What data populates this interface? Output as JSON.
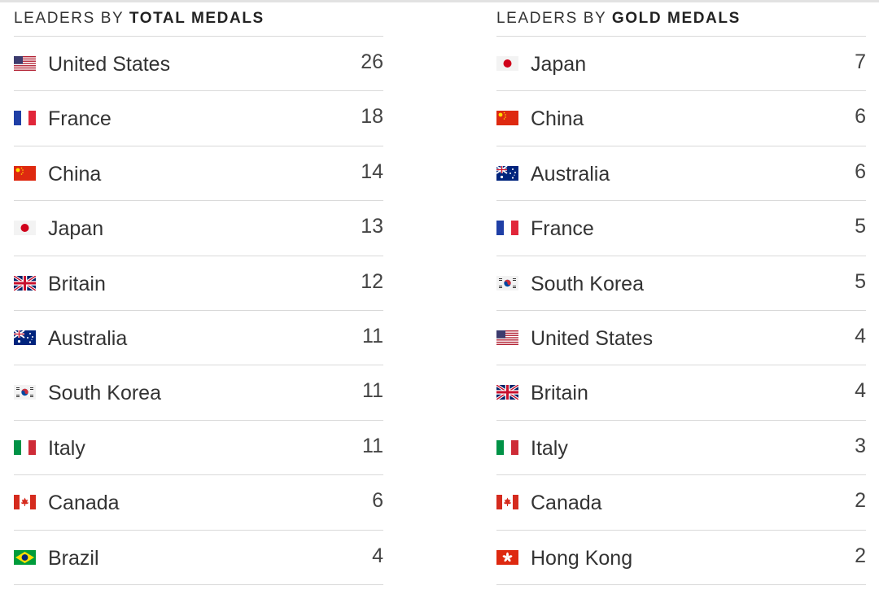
{
  "total": {
    "heading_prefix": "LEADERS BY",
    "heading_bold": "TOTAL MEDALS",
    "rows": [
      {
        "country": "United States",
        "flag": "us-flag-icon",
        "count": "26"
      },
      {
        "country": "France",
        "flag": "france-flag-icon",
        "count": "18"
      },
      {
        "country": "China",
        "flag": "china-flag-icon",
        "count": "14"
      },
      {
        "country": "Japan",
        "flag": "japan-flag-icon",
        "count": "13"
      },
      {
        "country": "Britain",
        "flag": "uk-flag-icon",
        "count": "12"
      },
      {
        "country": "Australia",
        "flag": "australia-flag-icon",
        "count": "11"
      },
      {
        "country": "South Korea",
        "flag": "south-korea-flag-icon",
        "count": "11"
      },
      {
        "country": "Italy",
        "flag": "italy-flag-icon",
        "count": "11"
      },
      {
        "country": "Canada",
        "flag": "canada-flag-icon",
        "count": "6"
      },
      {
        "country": "Brazil",
        "flag": "brazil-flag-icon",
        "count": "4"
      }
    ]
  },
  "gold": {
    "heading_prefix": "LEADERS BY",
    "heading_bold": "GOLD MEDALS",
    "rows": [
      {
        "country": "Japan",
        "flag": "japan-flag-icon",
        "count": "7"
      },
      {
        "country": "China",
        "flag": "china-flag-icon",
        "count": "6"
      },
      {
        "country": "Australia",
        "flag": "australia-flag-icon",
        "count": "6"
      },
      {
        "country": "France",
        "flag": "france-flag-icon",
        "count": "5"
      },
      {
        "country": "South Korea",
        "flag": "south-korea-flag-icon",
        "count": "5"
      },
      {
        "country": "United States",
        "flag": "us-flag-icon",
        "count": "4"
      },
      {
        "country": "Britain",
        "flag": "uk-flag-icon",
        "count": "4"
      },
      {
        "country": "Italy",
        "flag": "italy-flag-icon",
        "count": "3"
      },
      {
        "country": "Canada",
        "flag": "canada-flag-icon",
        "count": "2"
      },
      {
        "country": "Hong Kong",
        "flag": "hong-kong-flag-icon",
        "count": "2"
      }
    ]
  }
}
